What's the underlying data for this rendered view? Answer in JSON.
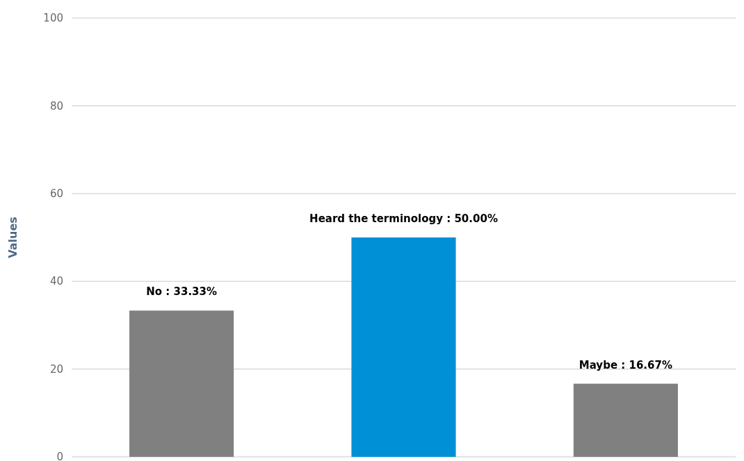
{
  "chart_data": {
    "type": "bar",
    "ylabel": "Values",
    "categories": [
      null,
      null,
      null
    ],
    "values": [
      33.33,
      50,
      16.67
    ],
    "colors": [
      "#808080",
      "#0090d6",
      "#808080"
    ],
    "value_labels": [
      "No : 33.33%",
      "Heard the terminology : 50.00%",
      "Maybe : 16.67%"
    ],
    "ylim": [
      0,
      100
    ],
    "yticks": [
      0,
      20,
      40,
      60,
      80,
      100
    ],
    "grid": "y"
  }
}
